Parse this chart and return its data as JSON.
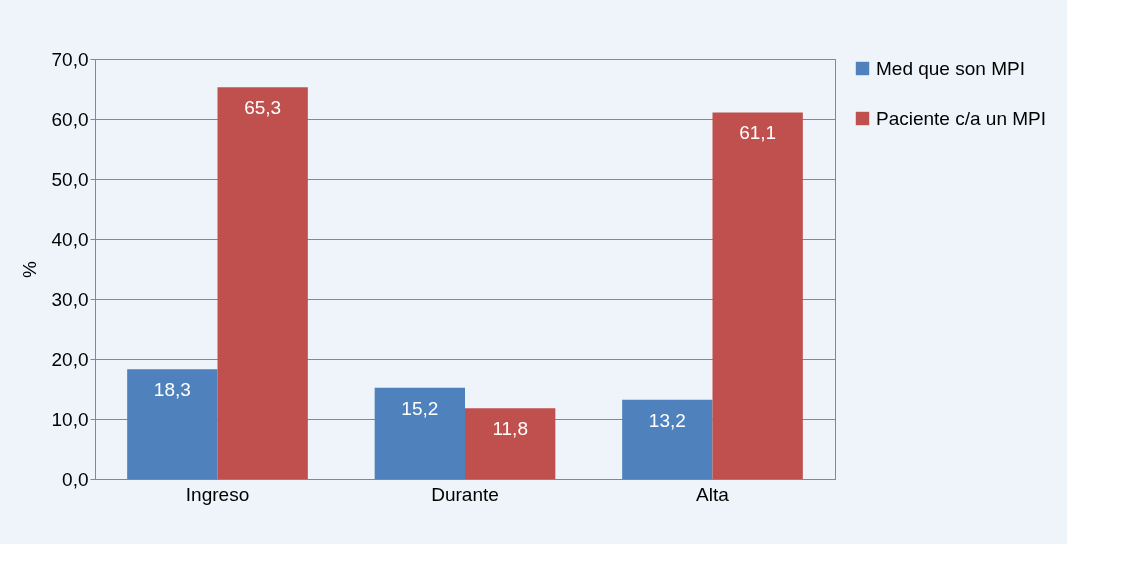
{
  "chart_data": {
    "type": "bar",
    "ylabel": "%",
    "categories": [
      "Ingreso",
      "Durante",
      "Alta"
    ],
    "series": [
      {
        "name": "Med que son MPI",
        "color": "#4f81bd",
        "values": [
          18.3,
          15.2,
          13.2
        ],
        "value_labels": [
          "18,3",
          "15,2",
          "13,2"
        ]
      },
      {
        "name": "Paciente c/a un MPI",
        "color": "#c0504d",
        "values": [
          65.3,
          11.8,
          61.1
        ],
        "value_labels": [
          "65,3",
          "11,8",
          "61,1"
        ]
      }
    ],
    "ylim": [
      0,
      70
    ],
    "yticks": [
      {
        "value": 0,
        "label": "0,0"
      },
      {
        "value": 10,
        "label": "10,0"
      },
      {
        "value": 20,
        "label": "20,0"
      },
      {
        "value": 30,
        "label": "30,0"
      },
      {
        "value": 40,
        "label": "40,0"
      },
      {
        "value": 50,
        "label": "50,0"
      },
      {
        "value": 60,
        "label": "60,0"
      },
      {
        "value": 70,
        "label": "70,0"
      }
    ],
    "grid": "y",
    "legend": "right"
  }
}
